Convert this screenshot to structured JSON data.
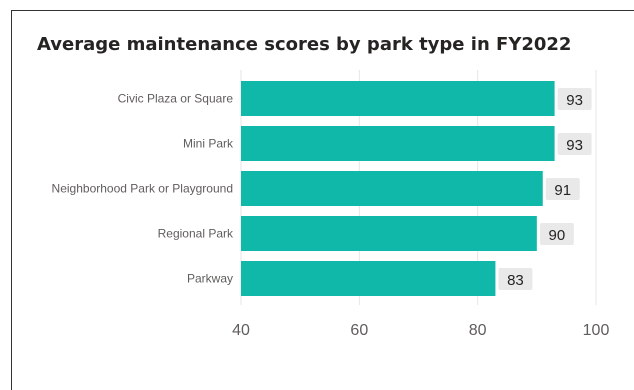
{
  "chart_data": {
    "type": "bar",
    "orientation": "horizontal",
    "title": "Average maintenance scores by park type in FY2022",
    "categories": [
      "Civic Plaza or Square",
      "Mini Park",
      "Neighborhood Park or Playground",
      "Regional Park",
      "Parkway"
    ],
    "values": [
      93,
      93,
      91,
      90,
      83
    ],
    "data_labels": [
      "93",
      "93",
      "91",
      "90",
      "83"
    ],
    "xlim": [
      40,
      100
    ],
    "xticks": [
      40,
      60,
      80,
      100
    ],
    "xtick_labels": [
      "40",
      "60",
      "80",
      "100"
    ],
    "grid": true,
    "legend": false,
    "bar_color": "#0fb8a9",
    "label_bg_color": "#e9e9e9",
    "grid_color": "#e6e6e6"
  }
}
